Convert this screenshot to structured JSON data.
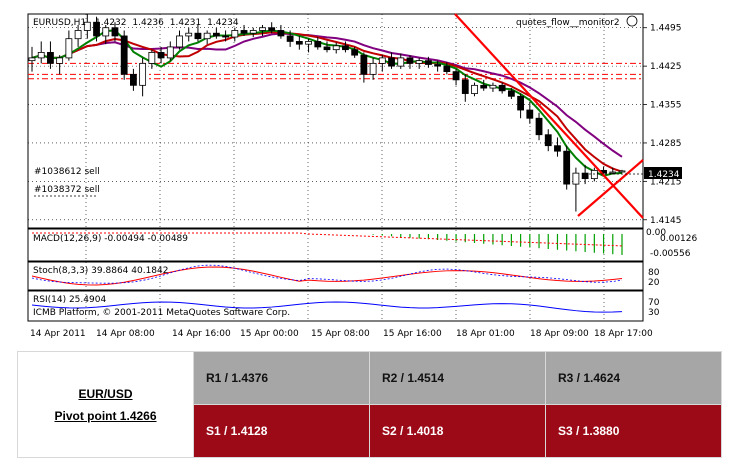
{
  "chart_data": {
    "type": "candlestick",
    "instrument": "EURUSD",
    "timeframe": "H1",
    "ohlc_header": [
      "1.4232",
      "1.4236",
      "1.4231",
      "1.4234"
    ],
    "indicator_name": "quotes_flow__monitor2",
    "current_price": "1.4234",
    "price_axis_labels": [
      "1.4495",
      "1.4425",
      "1.4355",
      "1.4285",
      "1.4215",
      "1.4145"
    ],
    "price_axis_values": [
      1.4495,
      1.4425,
      1.4355,
      1.4285,
      1.4215,
      1.4145
    ],
    "x_tick_labels": [
      "14 Apr 2011",
      "14 Apr 08:00",
      "14 Apr 16:00",
      "15 Apr 00:00",
      "15 Apr 08:00",
      "15 Apr 16:00",
      "18 Apr 01:00",
      "18 Apr 09:00",
      "18 Apr 17:00"
    ],
    "order_labels": [
      "#1038612 sell",
      "#1038372 sell"
    ],
    "candles_ohlc": [
      [
        1.4435,
        1.446,
        1.4415,
        1.444
      ],
      [
        1.444,
        1.447,
        1.443,
        1.445
      ],
      [
        1.445,
        1.447,
        1.442,
        1.443
      ],
      [
        1.443,
        1.4445,
        1.441,
        1.444
      ],
      [
        1.444,
        1.449,
        1.4435,
        1.4475
      ],
      [
        1.4475,
        1.45,
        1.446,
        1.449
      ],
      [
        1.449,
        1.452,
        1.4475,
        1.4505
      ],
      [
        1.4505,
        1.4515,
        1.447,
        1.448
      ],
      [
        1.448,
        1.45,
        1.4465,
        1.4495
      ],
      [
        1.4495,
        1.4505,
        1.447,
        1.448
      ],
      [
        1.448,
        1.449,
        1.44,
        1.441
      ],
      [
        1.441,
        1.442,
        1.438,
        1.439
      ],
      [
        1.439,
        1.444,
        1.437,
        1.443
      ],
      [
        1.443,
        1.4455,
        1.442,
        1.445
      ],
      [
        1.445,
        1.446,
        1.443,
        1.444
      ],
      [
        1.444,
        1.447,
        1.4435,
        1.446
      ],
      [
        1.446,
        1.449,
        1.4455,
        1.448
      ],
      [
        1.448,
        1.4495,
        1.447,
        1.4485
      ],
      [
        1.4485,
        1.45,
        1.447,
        1.4475
      ],
      [
        1.4475,
        1.449,
        1.4465,
        1.4485
      ],
      [
        1.4485,
        1.4495,
        1.4475,
        1.448
      ],
      [
        1.448,
        1.449,
        1.447,
        1.4478
      ],
      [
        1.4478,
        1.4495,
        1.447,
        1.449
      ],
      [
        1.449,
        1.45,
        1.448,
        1.4485
      ],
      [
        1.4485,
        1.4495,
        1.4478,
        1.449
      ],
      [
        1.449,
        1.45,
        1.448,
        1.4495
      ],
      [
        1.4495,
        1.4505,
        1.4485,
        1.449
      ],
      [
        1.449,
        1.45,
        1.4475,
        1.448
      ],
      [
        1.448,
        1.449,
        1.446,
        1.447
      ],
      [
        1.447,
        1.448,
        1.4455,
        1.4465
      ],
      [
        1.4465,
        1.4475,
        1.445,
        1.447
      ],
      [
        1.447,
        1.4478,
        1.4455,
        1.446
      ],
      [
        1.446,
        1.447,
        1.445,
        1.4455
      ],
      [
        1.4455,
        1.4468,
        1.4448,
        1.4462
      ],
      [
        1.4462,
        1.447,
        1.445,
        1.4455
      ],
      [
        1.4455,
        1.446,
        1.444,
        1.4445
      ],
      [
        1.4445,
        1.445,
        1.4395,
        1.441
      ],
      [
        1.441,
        1.444,
        1.44,
        1.443
      ],
      [
        1.443,
        1.4445,
        1.4415,
        1.444
      ],
      [
        1.444,
        1.445,
        1.442,
        1.4425
      ],
      [
        1.4425,
        1.4448,
        1.442,
        1.444
      ],
      [
        1.444,
        1.4445,
        1.442,
        1.443
      ],
      [
        1.443,
        1.444,
        1.442,
        1.4435
      ],
      [
        1.4435,
        1.4442,
        1.4422,
        1.4428
      ],
      [
        1.4428,
        1.4435,
        1.4415,
        1.4425
      ],
      [
        1.4425,
        1.4432,
        1.441,
        1.4415
      ],
      [
        1.4415,
        1.442,
        1.439,
        1.44
      ],
      [
        1.44,
        1.441,
        1.436,
        1.4375
      ],
      [
        1.4375,
        1.4395,
        1.437,
        1.439
      ],
      [
        1.439,
        1.44,
        1.438,
        1.4385
      ],
      [
        1.4385,
        1.4395,
        1.4378,
        1.439
      ],
      [
        1.439,
        1.4395,
        1.4375,
        1.438
      ],
      [
        1.438,
        1.4385,
        1.4365,
        1.437
      ],
      [
        1.437,
        1.4375,
        1.433,
        1.4345
      ],
      [
        1.4345,
        1.436,
        1.432,
        1.433
      ],
      [
        1.433,
        1.434,
        1.429,
        1.43
      ],
      [
        1.43,
        1.431,
        1.427,
        1.428
      ],
      [
        1.428,
        1.4295,
        1.426,
        1.427
      ],
      [
        1.427,
        1.428,
        1.42,
        1.421
      ],
      [
        1.421,
        1.424,
        1.416,
        1.423
      ],
      [
        1.423,
        1.4245,
        1.421,
        1.422
      ],
      [
        1.422,
        1.424,
        1.4215,
        1.4235
      ],
      [
        1.4235,
        1.4242,
        1.4225,
        1.423
      ],
      [
        1.423,
        1.424,
        1.4228,
        1.4232
      ],
      [
        1.4232,
        1.4236,
        1.4231,
        1.4234
      ]
    ],
    "subwindows": {
      "macd": {
        "label": "MACD(12,26,9) -0.00494 -0.00489",
        "axis_labels": [
          "0.00126",
          "-0.00556"
        ],
        "top_left": "0.00"
      },
      "stoch": {
        "label": "Stoch(8,3,3) 39.8864 40.1842",
        "axis_labels": [
          "80",
          "20"
        ]
      },
      "rsi": {
        "label": "RSI(14) 25.4904",
        "axis_labels": [
          "70",
          "30"
        ]
      }
    },
    "copyright": "ICMB Platform, © 2001-2011 MetaQuotes Software Corp.",
    "colors": {
      "bull": "#ffffff",
      "bear": "#000000",
      "ma_fast": "#c00000",
      "ma_mid": "#008000",
      "ma_slow": "#800080",
      "trend": "#ff0000",
      "macd_hist": "#00a000"
    }
  },
  "pivot": {
    "pair": "EUR/USD",
    "pivot_point": "Pivot point 1.4266",
    "resistances": [
      "R1 / 1.4376",
      "R2 / 1.4514",
      "R3 / 1.4624"
    ],
    "supports": [
      "S1 / 1.4128",
      "S2 / 1.4018",
      "S3 / 1.3880"
    ]
  }
}
